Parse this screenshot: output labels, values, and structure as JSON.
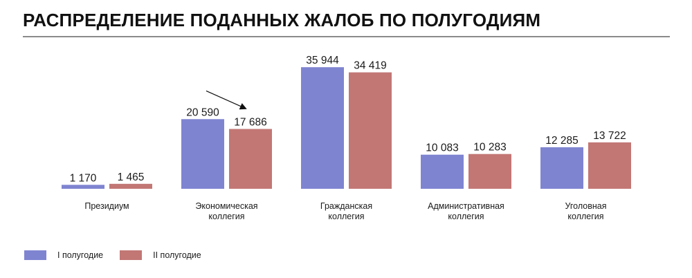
{
  "title": "РАСПРЕДЕЛЕНИЕ ПОДАННЫХ ЖАЛОБ ПО ПОЛУГОДИЯМ",
  "colors": {
    "series1": "#7f84d1",
    "series2": "#c27775",
    "rule": "#8a8a8a"
  },
  "chart_data": {
    "type": "bar",
    "categories": [
      [
        "Президиум"
      ],
      [
        "Экономическая",
        "коллегия"
      ],
      [
        "Гражданская",
        "коллегия"
      ],
      [
        "Административная",
        "коллегия"
      ],
      [
        "Уголовная",
        "коллегия"
      ]
    ],
    "series": [
      {
        "name": "I полугодие",
        "values": [
          1170,
          20590,
          35944,
          10083,
          12285
        ],
        "labels": [
          "1 170",
          "20 590",
          "35 944",
          "10 083",
          "12 285"
        ]
      },
      {
        "name": "II полугодие",
        "values": [
          1465,
          17686,
          34419,
          10283,
          13722
        ],
        "labels": [
          "1 465",
          "17 686",
          "34 419",
          "10 283",
          "13 722"
        ]
      }
    ],
    "ylim": [
      0,
      37000
    ],
    "grid": false,
    "legend": "bottom-left",
    "annotations": [
      {
        "type": "arrow",
        "category": "Экономическая коллегия",
        "series": "II полугодие"
      }
    ]
  }
}
